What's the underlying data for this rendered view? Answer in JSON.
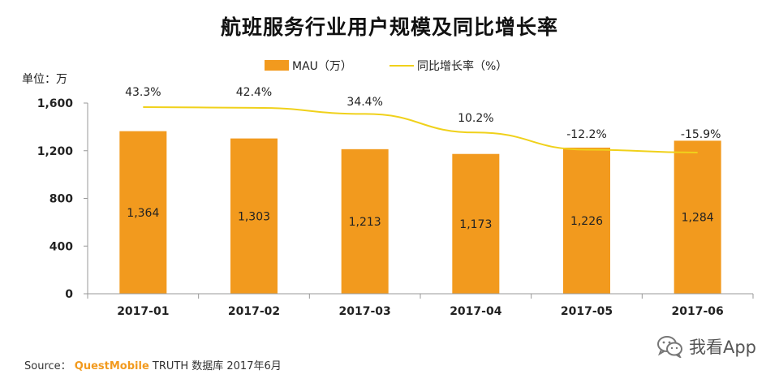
{
  "chart_data": {
    "type": "bar",
    "title": "航班服务行业用户规模及同比增长率",
    "unit_label": "单位：万",
    "categories": [
      "2017-01",
      "2017-02",
      "2017-03",
      "2017-04",
      "2017-05",
      "2017-06"
    ],
    "series": [
      {
        "name": "MAU（万）",
        "kind": "bar",
        "values": [
          1364,
          1303,
          1213,
          1173,
          1226,
          1284
        ],
        "labels": [
          "1,364",
          "1,303",
          "1,213",
          "1,173",
          "1,226",
          "1,284"
        ]
      },
      {
        "name": "同比增长率（%）",
        "kind": "line",
        "values": [
          43.3,
          42.4,
          34.4,
          10.2,
          -12.2,
          -15.9
        ],
        "labels": [
          "43.3%",
          "42.4%",
          "34.4%",
          "10.2%",
          "-12.2%",
          "-15.9%"
        ]
      }
    ],
    "yticks": [
      "0",
      "400",
      "800",
      "1,200",
      "1,600"
    ],
    "ylim": [
      0,
      1600
    ],
    "legend_position": "top",
    "colors": {
      "bar": "#f29a1e",
      "line": "#f0d11b",
      "axis": "#999999"
    }
  },
  "footer": {
    "source_prefix": "Source：",
    "source_brand": "QuestMobile",
    "source_rest": "TRUTH 数据库 2017年6月"
  },
  "watermark": {
    "icon": "wechat-icon",
    "text": "我看App"
  }
}
